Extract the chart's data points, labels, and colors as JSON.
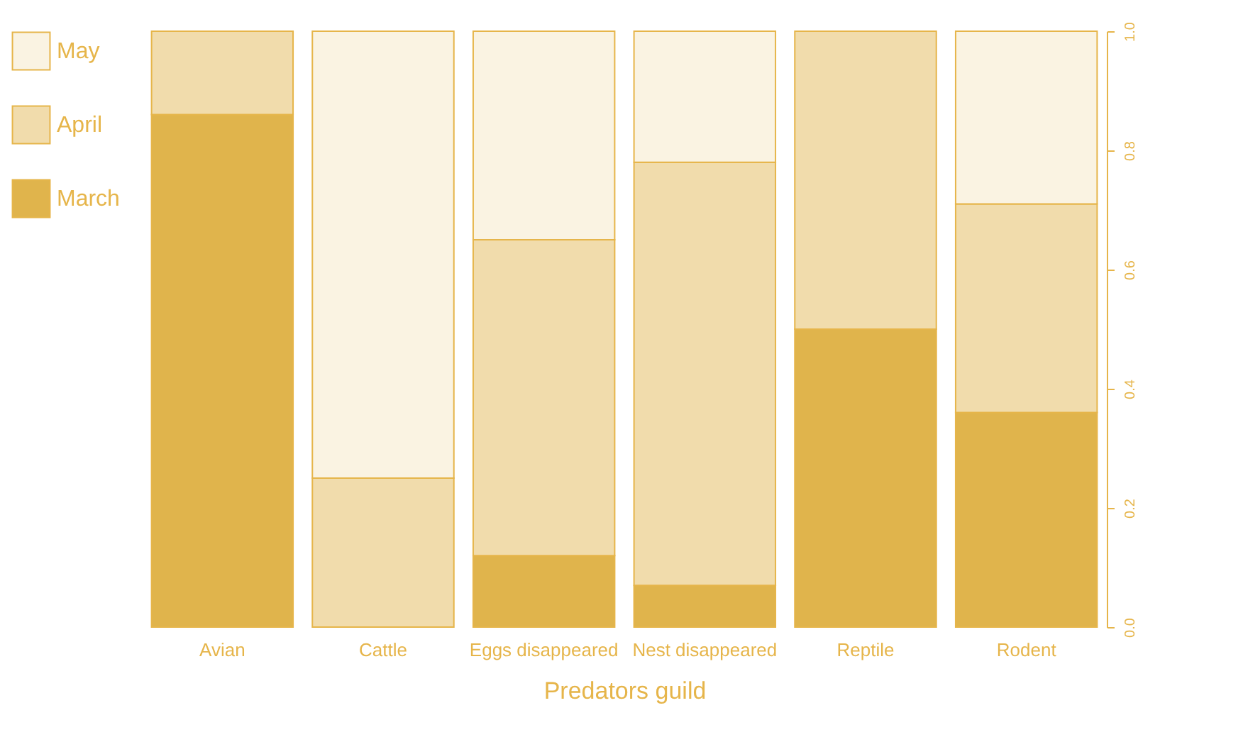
{
  "chart_data": {
    "type": "bar",
    "stacked": true,
    "xlabel": "Predators guild",
    "categories": [
      "Avian",
      "Cattle",
      "Eggs disappeared",
      "Nest disappeared",
      "Reptile",
      "Rodent"
    ],
    "series": [
      {
        "name": "March",
        "color": "#e0b44c",
        "values": [
          0.86,
          0,
          0.12,
          0.07,
          0.5,
          0.36
        ]
      },
      {
        "name": "April",
        "color": "#f1dcac",
        "values": [
          0.14,
          0.25,
          0.53,
          0.71,
          0.5,
          0.35
        ]
      },
      {
        "name": "May",
        "color": "#faf3e2",
        "values": [
          0,
          0.75,
          0.35,
          0.22,
          0,
          0.29
        ]
      }
    ],
    "ylim": [
      0,
      1
    ],
    "yticks": [
      {
        "value": 0,
        "label": "0.0"
      },
      {
        "value": 0.2,
        "label": "0.2"
      },
      {
        "value": 0.4,
        "label": "0.4"
      },
      {
        "value": 0.6,
        "label": "0.6"
      },
      {
        "value": 0.8,
        "label": "0.8"
      },
      {
        "value": 1,
        "label": "1.0"
      }
    ],
    "legend": "top left",
    "grid": false
  }
}
